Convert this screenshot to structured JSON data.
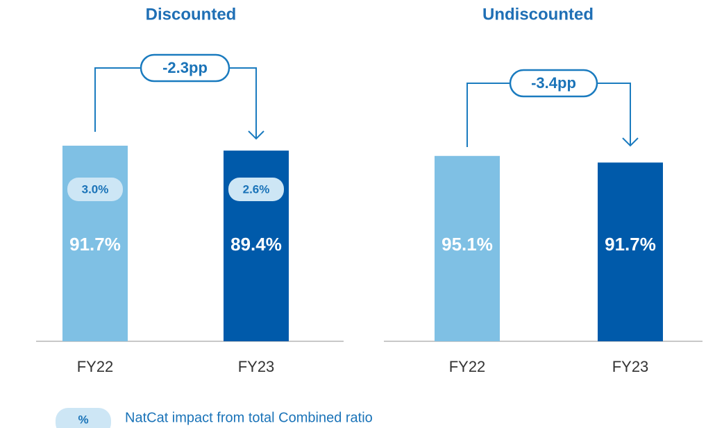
{
  "chart_data": [
    {
      "type": "bar",
      "title": "Discounted",
      "categories": [
        "FY22",
        "FY23"
      ],
      "values": [
        91.7,
        89.4
      ],
      "value_labels": [
        "91.7%",
        "89.4%"
      ],
      "colors": [
        "#7fc0e4",
        "#005aaa"
      ],
      "natcat": [
        3.0,
        2.6
      ],
      "natcat_labels": [
        "3.0%",
        "2.6%"
      ],
      "annotation": "-2.3pp"
    },
    {
      "type": "bar",
      "title": "Undiscounted",
      "categories": [
        "FY22",
        "FY23"
      ],
      "values": [
        95.1,
        91.7
      ],
      "value_labels": [
        "95.1%",
        "91.7%"
      ],
      "colors": [
        "#7fc0e4",
        "#005aaa"
      ],
      "annotation": "-3.4pp"
    }
  ],
  "legend": {
    "symbol": "%",
    "label": "NatCat impact from total Combined ratio"
  }
}
